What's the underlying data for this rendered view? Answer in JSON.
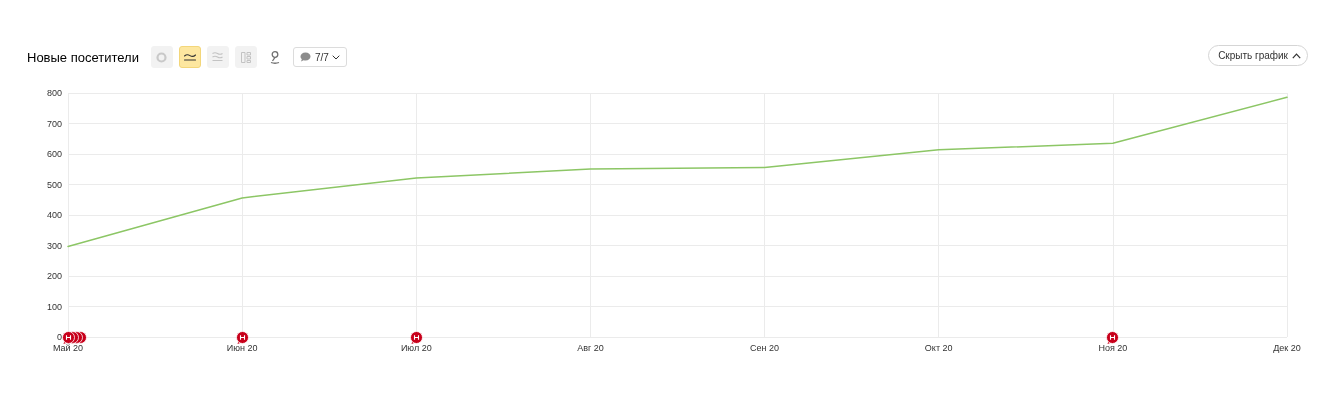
{
  "chart_data": {
    "type": "line",
    "title": "Новые посетители",
    "categories": [
      "Май 20",
      "Июн 20",
      "Июл 20",
      "Авг 20",
      "Сен 20",
      "Окт 20",
      "Ноя 20",
      "Дек 20"
    ],
    "values": [
      297,
      456,
      521,
      551,
      556,
      614,
      635,
      786
    ],
    "color": "#8cc665",
    "ylim": [
      0,
      800
    ],
    "yticks": [
      0,
      100,
      200,
      300,
      400,
      500,
      600,
      700,
      800
    ],
    "grid": true,
    "marker": "none",
    "annotations": [
      "7/7",
      "Скрыть график"
    ]
  }
}
